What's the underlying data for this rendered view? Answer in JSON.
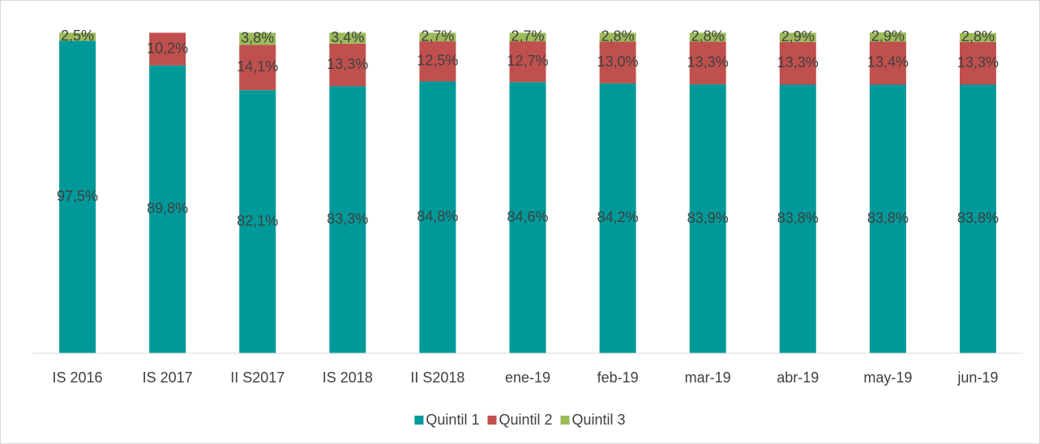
{
  "chart_data": {
    "type": "stacked-bar",
    "categories": [
      "IS 2016",
      "IS 2017",
      "II S2017",
      "IS 2018",
      "II S2018",
      "ene-19",
      "feb-19",
      "mar-19",
      "abr-19",
      "may-19",
      "jun-19"
    ],
    "series": [
      {
        "name": "Quintil 1",
        "color": "#009999",
        "values": [
          97.5,
          89.8,
          82.1,
          83.3,
          84.8,
          84.6,
          84.2,
          83.9,
          83.8,
          83.8,
          83.8
        ],
        "value_labels": [
          "97,5%",
          "89,8%",
          "82,1%",
          "83,3%",
          "84,8%",
          "84,6%",
          "84,2%",
          "83,9%",
          "83,8%",
          "83,8%",
          "83,8%"
        ]
      },
      {
        "name": "Quintil 2",
        "color": "#c0504d",
        "values": [
          null,
          10.2,
          14.1,
          13.3,
          12.5,
          12.7,
          13.0,
          13.3,
          13.3,
          13.4,
          13.3
        ],
        "value_labels": [
          null,
          "10,2%",
          "14,1%",
          "13,3%",
          "12,5%",
          "12,7%",
          "13,0%",
          "13,3%",
          "13,3%",
          "13,4%",
          "13,3%"
        ]
      },
      {
        "name": "Quintil 3",
        "color": "#9bbb59",
        "values": [
          2.5,
          null,
          3.8,
          3.4,
          2.7,
          2.7,
          2.8,
          2.8,
          2.9,
          2.9,
          2.8
        ],
        "value_labels": [
          "2,5%",
          null,
          "3,8%",
          "3,4%",
          "2,7%",
          "2,7%",
          "2,8%",
          "2,8%",
          "2,9%",
          "2,9%",
          "2,8%"
        ]
      }
    ],
    "legend": "bottom"
  }
}
